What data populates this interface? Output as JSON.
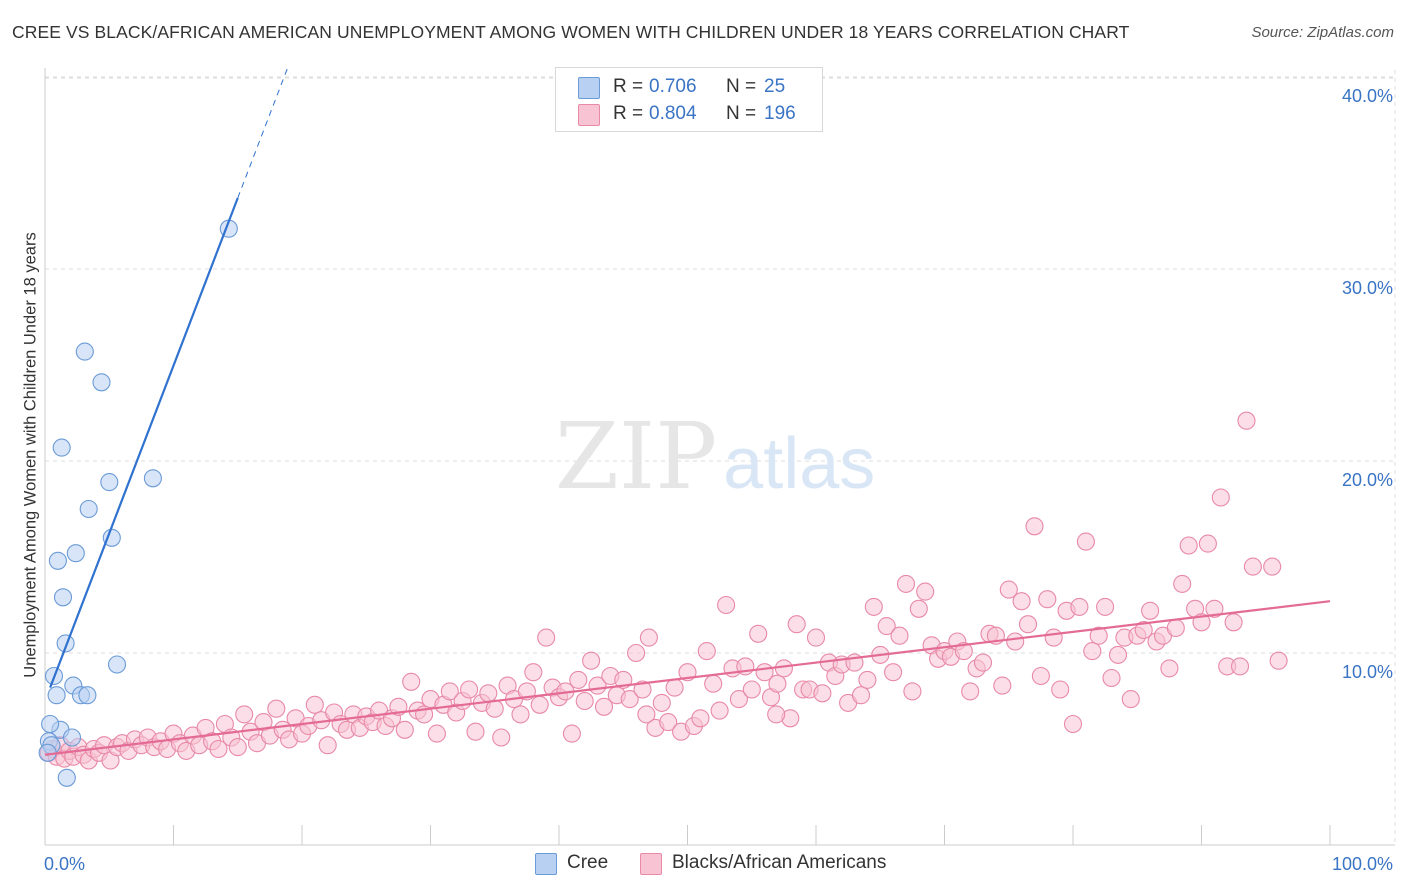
{
  "title": "CREE VS BLACK/AFRICAN AMERICAN UNEMPLOYMENT AMONG WOMEN WITH CHILDREN UNDER 18 YEARS CORRELATION CHART",
  "source": "Source: ZipAtlas.com",
  "watermark": {
    "zip": "ZIP",
    "atlas": "atlas"
  },
  "legend_top": {
    "r_label": "R =",
    "n_label": "N =",
    "rows": [
      {
        "series": "Cree",
        "r": "0.706",
        "n": "25"
      },
      {
        "series": "Blacks/African Americans",
        "r": "0.804",
        "n": "196"
      }
    ]
  },
  "colors": {
    "cree_fill": "#b8d0f2",
    "cree_stroke": "#6b9bd6",
    "cree_line": "#2f72cf",
    "black_fill": "#f8c3d3",
    "black_stroke": "#e889a8",
    "black_line": "#e36b95",
    "tick_label": "#3a74c4",
    "grid": "#dddddd"
  },
  "chart_data": {
    "type": "scatter",
    "title": "CREE VS BLACK/AFRICAN AMERICAN UNEMPLOYMENT AMONG WOMEN WITH CHILDREN UNDER 18 YEARS CORRELATION CHART",
    "xlabel": "",
    "ylabel": "Unemployment Among Women with Children Under 18 years",
    "xlim": [
      0,
      100
    ],
    "ylim": [
      0,
      42
    ],
    "x_tick_labels": [
      {
        "value": 0,
        "label": "0.0%"
      },
      {
        "value": 100,
        "label": "100.0%"
      }
    ],
    "y_ticks": [
      {
        "value": 10,
        "label": "10.0%"
      },
      {
        "value": 20,
        "label": "20.0%"
      },
      {
        "value": 30,
        "label": "30.0%"
      },
      {
        "value": 40,
        "label": "40.0%"
      }
    ],
    "grid": true,
    "legend": "bottom",
    "series": [
      {
        "name": "Cree",
        "r": 0.706,
        "n": 25,
        "trend": {
          "x1": 0.4,
          "y1": 8.2,
          "x2": 15.0,
          "y2": 33.7,
          "dash_to_x": 18.9
        },
        "points": [
          [
            14.3,
            32.1
          ],
          [
            3.1,
            25.7
          ],
          [
            4.4,
            24.1
          ],
          [
            1.3,
            20.7
          ],
          [
            8.4,
            19.1
          ],
          [
            5.0,
            18.9
          ],
          [
            3.4,
            17.5
          ],
          [
            5.2,
            16.0
          ],
          [
            2.4,
            15.2
          ],
          [
            1.0,
            14.8
          ],
          [
            1.4,
            12.9
          ],
          [
            1.6,
            10.5
          ],
          [
            5.6,
            9.4
          ],
          [
            0.7,
            8.8
          ],
          [
            2.2,
            8.3
          ],
          [
            0.9,
            7.8
          ],
          [
            2.8,
            7.8
          ],
          [
            3.3,
            7.8
          ],
          [
            1.2,
            6.0
          ],
          [
            2.1,
            5.6
          ],
          [
            0.3,
            5.4
          ],
          [
            0.5,
            5.2
          ],
          [
            0.2,
            4.8
          ],
          [
            0.4,
            6.3
          ],
          [
            1.7,
            3.5
          ]
        ]
      },
      {
        "name": "Blacks/African Americans",
        "r": 0.804,
        "n": 196,
        "trend": {
          "x1": 0,
          "y1": 4.7,
          "x2": 100,
          "y2": 12.7
        },
        "points": [
          [
            0.3,
            4.8
          ],
          [
            0.6,
            5.0
          ],
          [
            0.9,
            4.6
          ],
          [
            1.2,
            5.2
          ],
          [
            1.5,
            4.5
          ],
          [
            1.9,
            4.9
          ],
          [
            2.2,
            4.6
          ],
          [
            2.6,
            5.1
          ],
          [
            3.0,
            4.7
          ],
          [
            3.4,
            4.4
          ],
          [
            3.8,
            5.0
          ],
          [
            4.2,
            4.8
          ],
          [
            4.6,
            5.2
          ],
          [
            5.1,
            4.4
          ],
          [
            5.6,
            5.1
          ],
          [
            6.0,
            5.3
          ],
          [
            6.5,
            4.9
          ],
          [
            7.0,
            5.5
          ],
          [
            7.5,
            5.2
          ],
          [
            8.0,
            5.6
          ],
          [
            8.5,
            5.1
          ],
          [
            9.0,
            5.4
          ],
          [
            9.5,
            5.0
          ],
          [
            10.0,
            5.8
          ],
          [
            10.5,
            5.3
          ],
          [
            11.0,
            4.9
          ],
          [
            11.5,
            5.7
          ],
          [
            12.0,
            5.2
          ],
          [
            12.5,
            6.1
          ],
          [
            13.0,
            5.4
          ],
          [
            13.5,
            5.0
          ],
          [
            14.0,
            6.3
          ],
          [
            14.5,
            5.6
          ],
          [
            15.0,
            5.1
          ],
          [
            15.5,
            6.8
          ],
          [
            16.0,
            5.9
          ],
          [
            16.5,
            5.3
          ],
          [
            17.0,
            6.4
          ],
          [
            17.5,
            5.7
          ],
          [
            18.0,
            7.1
          ],
          [
            18.5,
            6.0
          ],
          [
            19.0,
            5.5
          ],
          [
            19.5,
            6.6
          ],
          [
            20.0,
            5.8
          ],
          [
            20.5,
            6.2
          ],
          [
            21.0,
            7.3
          ],
          [
            21.5,
            6.5
          ],
          [
            22.0,
            5.2
          ],
          [
            22.5,
            6.9
          ],
          [
            23.0,
            6.3
          ],
          [
            23.5,
            6.0
          ],
          [
            24.0,
            6.8
          ],
          [
            24.5,
            6.1
          ],
          [
            25.0,
            6.7
          ],
          [
            25.5,
            6.4
          ],
          [
            26.0,
            7.0
          ],
          [
            26.5,
            6.2
          ],
          [
            27.0,
            6.6
          ],
          [
            27.5,
            7.2
          ],
          [
            28.0,
            6.0
          ],
          [
            28.5,
            8.5
          ],
          [
            29.0,
            7.0
          ],
          [
            29.5,
            6.8
          ],
          [
            30.0,
            7.6
          ],
          [
            30.5,
            5.8
          ],
          [
            31.0,
            7.3
          ],
          [
            31.5,
            8.0
          ],
          [
            32.0,
            6.9
          ],
          [
            32.5,
            7.5
          ],
          [
            33.0,
            8.1
          ],
          [
            33.5,
            5.9
          ],
          [
            34.0,
            7.4
          ],
          [
            34.5,
            7.9
          ],
          [
            35.0,
            7.1
          ],
          [
            35.5,
            5.6
          ],
          [
            36.0,
            8.3
          ],
          [
            36.5,
            7.6
          ],
          [
            37.0,
            6.8
          ],
          [
            37.5,
            8.0
          ],
          [
            38.0,
            9.0
          ],
          [
            38.5,
            7.3
          ],
          [
            39.0,
            10.8
          ],
          [
            39.5,
            8.2
          ],
          [
            40.0,
            7.7
          ],
          [
            40.5,
            8.0
          ],
          [
            41.0,
            5.8
          ],
          [
            41.5,
            8.6
          ],
          [
            42.0,
            7.5
          ],
          [
            42.5,
            9.6
          ],
          [
            43.0,
            8.3
          ],
          [
            43.5,
            7.2
          ],
          [
            44.0,
            8.8
          ],
          [
            44.5,
            7.8
          ],
          [
            45.0,
            8.6
          ],
          [
            45.5,
            7.6
          ],
          [
            46.0,
            10.0
          ],
          [
            46.5,
            8.1
          ],
          [
            47.0,
            10.8
          ],
          [
            47.5,
            6.1
          ],
          [
            48.0,
            7.4
          ],
          [
            48.5,
            6.4
          ],
          [
            49.0,
            8.2
          ],
          [
            49.5,
            5.9
          ],
          [
            50.0,
            9.0
          ],
          [
            50.5,
            6.2
          ],
          [
            51.0,
            6.6
          ],
          [
            51.5,
            10.1
          ],
          [
            52.0,
            8.4
          ],
          [
            52.5,
            7.0
          ],
          [
            53.0,
            12.5
          ],
          [
            53.5,
            9.2
          ],
          [
            54.0,
            7.6
          ],
          [
            54.5,
            9.3
          ],
          [
            55.0,
            8.1
          ],
          [
            55.5,
            11.0
          ],
          [
            56.0,
            9.0
          ],
          [
            56.5,
            7.7
          ],
          [
            57.0,
            8.4
          ],
          [
            57.5,
            9.2
          ],
          [
            58.0,
            6.6
          ],
          [
            58.5,
            11.5
          ],
          [
            59.0,
            8.1
          ],
          [
            59.5,
            8.1
          ],
          [
            60.0,
            10.8
          ],
          [
            60.5,
            7.9
          ],
          [
            61.0,
            9.5
          ],
          [
            61.5,
            8.8
          ],
          [
            62.0,
            9.4
          ],
          [
            62.5,
            7.4
          ],
          [
            63.0,
            9.5
          ],
          [
            63.5,
            7.8
          ],
          [
            64.0,
            8.6
          ],
          [
            64.5,
            12.4
          ],
          [
            65.0,
            9.9
          ],
          [
            65.5,
            11.4
          ],
          [
            66.0,
            9.0
          ],
          [
            66.5,
            10.9
          ],
          [
            67.0,
            13.6
          ],
          [
            67.5,
            8.0
          ],
          [
            68.0,
            12.3
          ],
          [
            68.5,
            13.2
          ],
          [
            69.0,
            10.4
          ],
          [
            69.5,
            9.7
          ],
          [
            70.0,
            10.1
          ],
          [
            70.5,
            9.8
          ],
          [
            71.0,
            10.6
          ],
          [
            71.5,
            10.1
          ],
          [
            72.0,
            8.0
          ],
          [
            72.5,
            9.2
          ],
          [
            73.0,
            9.5
          ],
          [
            73.5,
            11.0
          ],
          [
            74.0,
            10.9
          ],
          [
            74.5,
            8.3
          ],
          [
            75.0,
            13.3
          ],
          [
            75.5,
            10.6
          ],
          [
            76.0,
            12.7
          ],
          [
            76.5,
            11.5
          ],
          [
            77.0,
            16.6
          ],
          [
            77.5,
            8.8
          ],
          [
            78.0,
            12.8
          ],
          [
            78.5,
            10.8
          ],
          [
            79.0,
            8.1
          ],
          [
            79.5,
            12.2
          ],
          [
            80.0,
            6.3
          ],
          [
            80.5,
            12.4
          ],
          [
            81.0,
            15.8
          ],
          [
            81.5,
            10.1
          ],
          [
            82.0,
            10.9
          ],
          [
            82.5,
            12.4
          ],
          [
            83.0,
            8.7
          ],
          [
            83.5,
            9.9
          ],
          [
            84.0,
            10.8
          ],
          [
            84.5,
            7.6
          ],
          [
            85.0,
            10.9
          ],
          [
            85.5,
            11.2
          ],
          [
            86.0,
            12.2
          ],
          [
            86.5,
            10.6
          ],
          [
            87.0,
            10.9
          ],
          [
            87.5,
            9.2
          ],
          [
            88.0,
            11.3
          ],
          [
            88.5,
            13.6
          ],
          [
            89.0,
            15.6
          ],
          [
            89.5,
            12.3
          ],
          [
            90.0,
            11.6
          ],
          [
            90.5,
            15.7
          ],
          [
            91.0,
            12.3
          ],
          [
            91.5,
            18.1
          ],
          [
            92.0,
            9.3
          ],
          [
            92.5,
            11.6
          ],
          [
            93.0,
            9.3
          ],
          [
            93.5,
            22.1
          ],
          [
            94.0,
            14.5
          ],
          [
            95.5,
            14.5
          ],
          [
            96.0,
            9.6
          ],
          [
            46.8,
            6.8
          ],
          [
            56.9,
            6.8
          ]
        ]
      }
    ]
  }
}
